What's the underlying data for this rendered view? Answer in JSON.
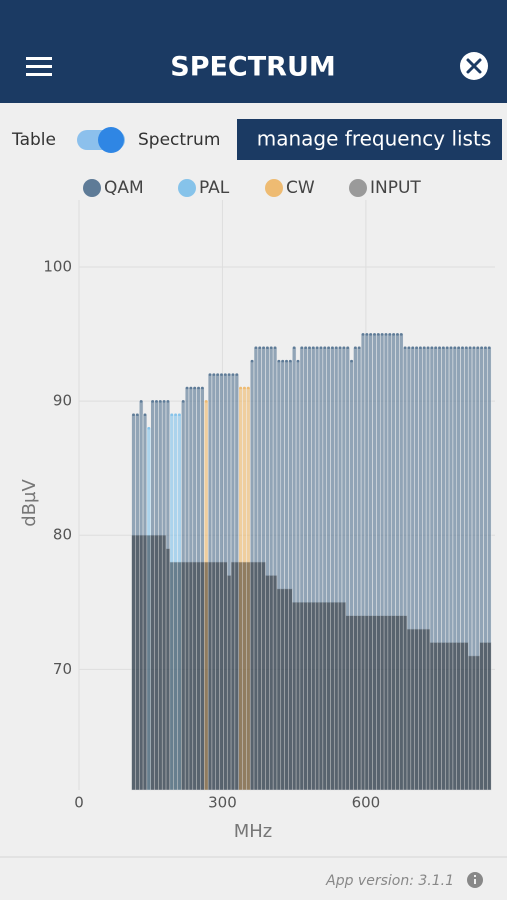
{
  "header": {
    "title": "SPECTRUM"
  },
  "view_toggle": {
    "left_label": "Table",
    "right_label": "Spectrum"
  },
  "button": {
    "label": "manage frequency lists"
  },
  "footer": {
    "version": "App version: 3.1.1"
  },
  "chart_data": {
    "type": "bar",
    "xlabel": "MHz",
    "ylabel": "dBµV",
    "xlim": [
      0,
      870
    ],
    "ylim": [
      61,
      105
    ],
    "xticks": [
      0,
      300,
      600
    ],
    "yticks": [
      70,
      80,
      90,
      100
    ],
    "grid": true,
    "x": [
      114,
      122,
      130,
      138,
      146,
      154,
      162,
      170,
      178,
      186,
      194,
      202,
      210,
      218,
      226,
      234,
      242,
      250,
      258,
      266,
      274,
      282,
      290,
      298,
      306,
      314,
      322,
      330,
      338,
      346,
      354,
      362,
      370,
      378,
      386,
      394,
      402,
      410,
      418,
      426,
      434,
      442,
      450,
      458,
      466,
      474,
      482,
      490,
      498,
      506,
      514,
      522,
      530,
      538,
      546,
      554,
      562,
      570,
      578,
      586,
      594,
      602,
      610,
      618,
      626,
      634,
      642,
      650,
      658,
      666,
      674,
      682,
      690,
      698,
      706,
      714,
      722,
      730,
      738,
      746,
      754,
      762,
      770,
      778,
      786,
      794,
      802,
      810,
      818,
      826,
      834,
      842,
      850,
      858
    ],
    "series": [
      {
        "name": "QAM",
        "color": "#5e7b97",
        "values": [
          89,
          89,
          90,
          89,
          null,
          90,
          90,
          90,
          90,
          90,
          null,
          null,
          null,
          90,
          91,
          91,
          91,
          91,
          91,
          null,
          92,
          92,
          92,
          92,
          92,
          92,
          92,
          92,
          null,
          null,
          null,
          93,
          94,
          94,
          94,
          94,
          94,
          94,
          93,
          93,
          93,
          93,
          94,
          93,
          94,
          94,
          94,
          94,
          94,
          94,
          94,
          94,
          94,
          94,
          94,
          94,
          94,
          93,
          94,
          94,
          95,
          95,
          95,
          95,
          95,
          95,
          95,
          95,
          95,
          95,
          95,
          94,
          94,
          94,
          94,
          94,
          94,
          94,
          94,
          94,
          94,
          94,
          94,
          94,
          94,
          94,
          94,
          94,
          94,
          94,
          94,
          94,
          94,
          94
        ]
      },
      {
        "name": "PAL",
        "color": "#86c3ea",
        "values": [
          null,
          null,
          null,
          null,
          88,
          null,
          null,
          null,
          null,
          null,
          89,
          89,
          89,
          null,
          null,
          null,
          null,
          null,
          null,
          null,
          null,
          null,
          null,
          null,
          null,
          null,
          null,
          null,
          null,
          null,
          null,
          null,
          null,
          null,
          null,
          null,
          null,
          null,
          null,
          null,
          null,
          null,
          null,
          null,
          null,
          null,
          null,
          null,
          null,
          null,
          null,
          null,
          null,
          null,
          null,
          null,
          null,
          null,
          null,
          null,
          null,
          null,
          null,
          null,
          null,
          null,
          null,
          null,
          null,
          null,
          null,
          null,
          null,
          null,
          null,
          null,
          null,
          null,
          null,
          null,
          null,
          null,
          null,
          null,
          null,
          null,
          null,
          null,
          null,
          null,
          null,
          null,
          null,
          null
        ]
      },
      {
        "name": "CW",
        "color": "#eebb72",
        "values": [
          null,
          null,
          null,
          null,
          null,
          null,
          null,
          null,
          null,
          null,
          null,
          null,
          null,
          null,
          null,
          null,
          null,
          null,
          null,
          90,
          null,
          null,
          null,
          null,
          null,
          null,
          null,
          null,
          91,
          91,
          91,
          null,
          null,
          null,
          null,
          null,
          null,
          null,
          null,
          null,
          null,
          null,
          null,
          null,
          null,
          null,
          null,
          null,
          null,
          null,
          null,
          null,
          null,
          null,
          null,
          null,
          null,
          null,
          null,
          null,
          null,
          null,
          null,
          null,
          null,
          null,
          null,
          null,
          null,
          null,
          null,
          null,
          null,
          null,
          null,
          null,
          null,
          null,
          null,
          null,
          null,
          null,
          null,
          null,
          null,
          null,
          null,
          null,
          null,
          null,
          null,
          null,
          null,
          null
        ]
      },
      {
        "name": "INPUT",
        "color": "#9a9a9a",
        "values": [
          80,
          80,
          80,
          80,
          80,
          80,
          80,
          80,
          80,
          79,
          78,
          78,
          78,
          78,
          78,
          78,
          78,
          78,
          78,
          78,
          78,
          78,
          78,
          78,
          78,
          77,
          78,
          78,
          78,
          78,
          78,
          78,
          78,
          78,
          78,
          77,
          77,
          77,
          76,
          76,
          76,
          76,
          75,
          75,
          75,
          75,
          75,
          75,
          75,
          75,
          75,
          75,
          75,
          75,
          75,
          75,
          74,
          74,
          74,
          74,
          74,
          74,
          74,
          74,
          74,
          74,
          74,
          74,
          74,
          74,
          74,
          74,
          73,
          73,
          73,
          73,
          73,
          73,
          72,
          72,
          72,
          72,
          72,
          72,
          72,
          72,
          72,
          72,
          71,
          71,
          71,
          72,
          72,
          72
        ]
      }
    ]
  }
}
